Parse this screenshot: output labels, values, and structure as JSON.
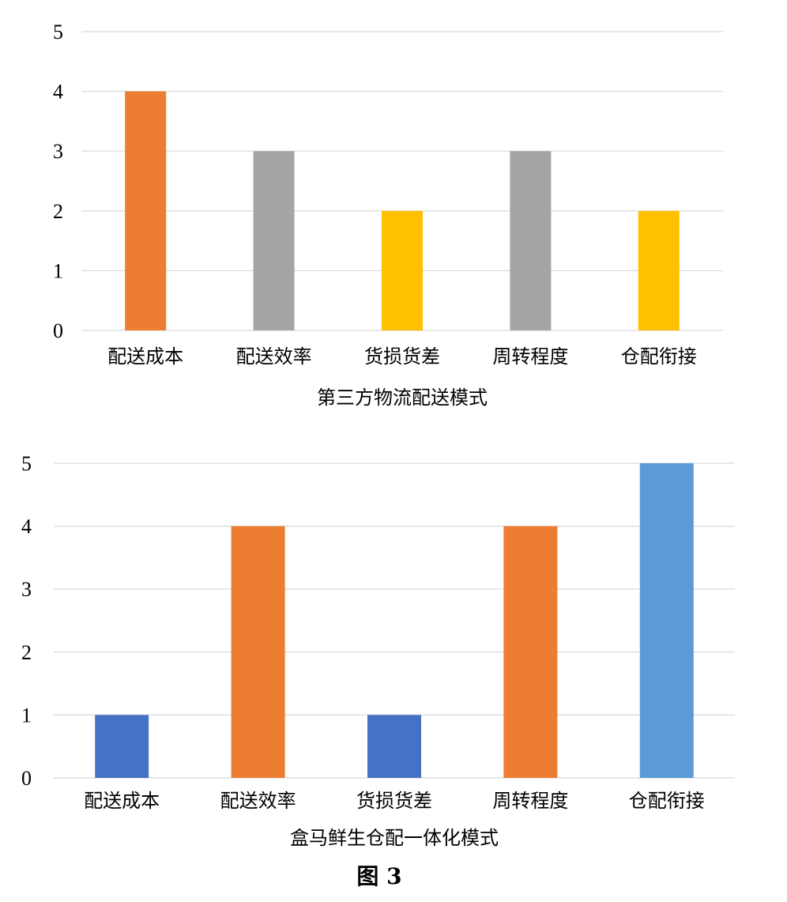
{
  "chart_data": [
    {
      "type": "bar",
      "categories": [
        "配送成本",
        "配送效率",
        "货损货差",
        "周转程度",
        "仓配衔接"
      ],
      "values": [
        4,
        3,
        2,
        3,
        2
      ],
      "colors": [
        "#ED7D31",
        "#A5A5A5",
        "#FFC000",
        "#A5A5A5",
        "#FFC000"
      ],
      "xlabel": "第三方物流配送模式",
      "ylabel": "",
      "ylim": [
        0,
        5
      ],
      "yticks": [
        0,
        1,
        2,
        3,
        4,
        5
      ],
      "grid": true
    },
    {
      "type": "bar",
      "categories": [
        "配送成本",
        "配送效率",
        "货损货差",
        "周转程度",
        "仓配衔接"
      ],
      "values": [
        1,
        4,
        1,
        4,
        5
      ],
      "colors": [
        "#4472C4",
        "#ED7D31",
        "#4472C4",
        "#ED7D31",
        "#5B9BD5"
      ],
      "xlabel": "盒马鲜生仓配一体化模式",
      "ylabel": "",
      "ylim": [
        0,
        5
      ],
      "yticks": [
        0,
        1,
        2,
        3,
        4,
        5
      ],
      "grid": true
    }
  ],
  "figure_caption": "图 3"
}
